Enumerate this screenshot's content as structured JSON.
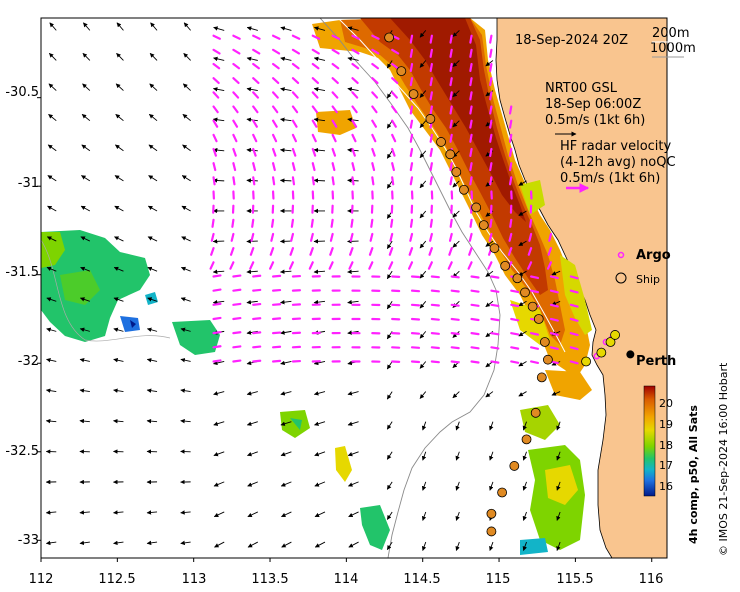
{
  "map": {
    "date_label": "18-Sep-2024 20Z",
    "isobath_label_1": "200m",
    "isobath_label_2": "1000m",
    "current_title": "NRT00 GSL",
    "current_time": "18-Sep 06:00Z",
    "current_scale": "0.5m/s (1kt 6h)",
    "radar_title": "HF radar velocity",
    "radar_subtitle": "(4-12h avg) noQC",
    "radar_scale": "0.5m/s (1kt 6h)",
    "legend_argo": "Argo",
    "legend_ship": "Ship",
    "city_label": "Perth",
    "colorbar_label": "4h comp, p50, All Sats",
    "colorbar_ticks": [
      "20",
      "19",
      "18",
      "17",
      "16"
    ],
    "credit": "© IMOS 21-Sep-2024 16:00 Hobart",
    "lat_ticks": [
      "-30.5",
      "-31",
      "-31.5",
      "-32",
      "-32.5",
      "-33"
    ],
    "lon_ticks": [
      "112",
      "112.5",
      "113",
      "113.5",
      "114",
      "114.5",
      "115",
      "115.5",
      "116"
    ],
    "lon_range": [
      112,
      116.1
    ],
    "lat_range": [
      -33.1,
      -30.05
    ]
  },
  "colors": {
    "land": "#f9c58f",
    "radar_vectors": "#ff22ff",
    "argo": "#ff22ff",
    "ship_fill": "#e08a22"
  },
  "ship_track": [
    {
      "lon": 114.28,
      "lat": -30.16
    },
    {
      "lon": 114.36,
      "lat": -30.35
    },
    {
      "lon": 114.44,
      "lat": -30.48
    },
    {
      "lon": 114.55,
      "lat": -30.62
    },
    {
      "lon": 114.62,
      "lat": -30.75
    },
    {
      "lon": 114.68,
      "lat": -30.82
    },
    {
      "lon": 114.72,
      "lat": -30.92
    },
    {
      "lon": 114.77,
      "lat": -31.02
    },
    {
      "lon": 114.85,
      "lat": -31.12
    },
    {
      "lon": 114.9,
      "lat": -31.22
    },
    {
      "lon": 114.97,
      "lat": -31.35
    },
    {
      "lon": 115.04,
      "lat": -31.45
    },
    {
      "lon": 115.12,
      "lat": -31.52
    },
    {
      "lon": 115.17,
      "lat": -31.6
    },
    {
      "lon": 115.22,
      "lat": -31.68
    },
    {
      "lon": 115.26,
      "lat": -31.75
    },
    {
      "lon": 115.3,
      "lat": -31.88
    },
    {
      "lon": 115.32,
      "lat": -31.98
    },
    {
      "lon": 115.28,
      "lat": -32.08
    },
    {
      "lon": 115.24,
      "lat": -32.28
    },
    {
      "lon": 115.18,
      "lat": -32.43
    },
    {
      "lon": 115.1,
      "lat": -32.58
    },
    {
      "lon": 115.02,
      "lat": -32.73
    },
    {
      "lon": 114.95,
      "lat": -32.85
    },
    {
      "lon": 114.95,
      "lat": -32.95
    }
  ],
  "argo_floats": [
    {
      "lon": 115.74,
      "lat": -31.86
    },
    {
      "lon": 115.7,
      "lat": -31.88
    },
    {
      "lon": 115.67,
      "lat": -31.93
    },
    {
      "lon": 115.64,
      "lat": -31.96
    }
  ],
  "coastal_markers": [
    {
      "lon": 115.57,
      "lat": -31.99
    },
    {
      "lon": 115.67,
      "lat": -31.94
    },
    {
      "lon": 115.73,
      "lat": -31.88
    },
    {
      "lon": 115.76,
      "lat": -31.84
    }
  ],
  "perth": {
    "lon": 115.86,
    "lat": -31.95
  }
}
